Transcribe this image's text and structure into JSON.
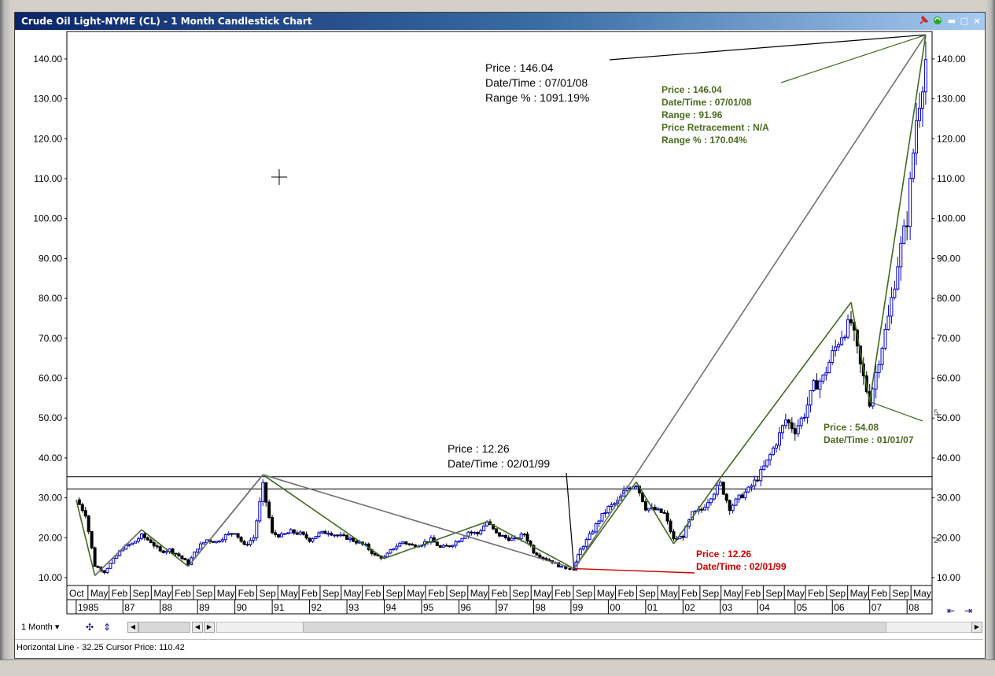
{
  "window": {
    "title": "Crude Oil Light-NYME (CL) - 1 Month Candlestick Chart",
    "icons": [
      "pin-icon",
      "refresh-icon"
    ],
    "controls": {
      "close": "×",
      "minimize": "▬",
      "maximize": "□"
    }
  },
  "toolbar": {
    "timeframe": "1 Month",
    "icons": [
      "crosshair-icon",
      "candle-settings-icon",
      "scroll-left-icon",
      "scroll-right-icon",
      "zoom-icon"
    ]
  },
  "status": {
    "text": "Horizontal Line - 32.25 Cursor Price: 110.42"
  },
  "chart_data": {
    "type": "candlestick",
    "title": "",
    "ylim": [
      10,
      147
    ],
    "y_ticks": [
      "10.00",
      "20.00",
      "30.00",
      "40.00",
      "50.00",
      "60.00",
      "70.00",
      "80.00",
      "90.00",
      "100.00",
      "110.00",
      "120.00",
      "130.00",
      "140.00"
    ],
    "x_month_labels": [
      "Oct",
      "May",
      "Feb",
      "Sep",
      "May",
      "Feb",
      "Sep",
      "May",
      "Feb",
      "Sep",
      "May",
      "Feb",
      "Sep",
      "May",
      "Feb",
      "Sep",
      "May",
      "Feb",
      "Sep",
      "May",
      "Feb",
      "Sep",
      "May",
      "Feb",
      "Sep",
      "May",
      "Feb",
      "Sep",
      "May",
      "Feb",
      "Sep",
      "May",
      "Feb",
      "Sep",
      "May",
      "Feb",
      "Sep",
      "May",
      "Feb",
      "Sep",
      "May"
    ],
    "x_year_labels": [
      "1985",
      "87",
      "88",
      "89",
      "90",
      "91",
      "92",
      "93",
      "94",
      "95",
      "96",
      "97",
      "98",
      "99",
      "00",
      "01",
      "02",
      "03",
      "04",
      "05",
      "06",
      "07",
      "08"
    ],
    "up_color": "#0000cc",
    "down_color": "#000000",
    "series_monthly_close": [
      {
        "t": 1985.75,
        "c": 29.5
      },
      {
        "t": 1986.0,
        "c": 26.0
      },
      {
        "t": 1986.25,
        "c": 13.0
      },
      {
        "t": 1986.5,
        "c": 11.5
      },
      {
        "t": 1986.75,
        "c": 14.5
      },
      {
        "t": 1987.0,
        "c": 17.5
      },
      {
        "t": 1987.25,
        "c": 18.5
      },
      {
        "t": 1987.5,
        "c": 20.5
      },
      {
        "t": 1987.75,
        "c": 19.0
      },
      {
        "t": 1988.0,
        "c": 16.5
      },
      {
        "t": 1988.25,
        "c": 17.0
      },
      {
        "t": 1988.5,
        "c": 15.5
      },
      {
        "t": 1988.75,
        "c": 13.5
      },
      {
        "t": 1989.0,
        "c": 17.5
      },
      {
        "t": 1989.25,
        "c": 19.5
      },
      {
        "t": 1989.5,
        "c": 19.0
      },
      {
        "t": 1989.75,
        "c": 20.5
      },
      {
        "t": 1990.0,
        "c": 21.5
      },
      {
        "t": 1990.25,
        "c": 18.0
      },
      {
        "t": 1990.5,
        "c": 20.0
      },
      {
        "t": 1990.75,
        "c": 33.0
      },
      {
        "t": 1991.0,
        "c": 21.0
      },
      {
        "t": 1991.25,
        "c": 20.5
      },
      {
        "t": 1991.5,
        "c": 21.5
      },
      {
        "t": 1991.75,
        "c": 21.0
      },
      {
        "t": 1992.0,
        "c": 19.5
      },
      {
        "t": 1992.25,
        "c": 21.0
      },
      {
        "t": 1992.5,
        "c": 21.5
      },
      {
        "t": 1992.75,
        "c": 20.5
      },
      {
        "t": 1993.0,
        "c": 20.0
      },
      {
        "t": 1993.25,
        "c": 19.0
      },
      {
        "t": 1993.5,
        "c": 18.0
      },
      {
        "t": 1993.75,
        "c": 15.5
      },
      {
        "t": 1994.0,
        "c": 15.0
      },
      {
        "t": 1994.25,
        "c": 17.5
      },
      {
        "t": 1994.5,
        "c": 19.0
      },
      {
        "t": 1994.75,
        "c": 18.0
      },
      {
        "t": 1995.0,
        "c": 18.5
      },
      {
        "t": 1995.25,
        "c": 19.5
      },
      {
        "t": 1995.5,
        "c": 17.5
      },
      {
        "t": 1995.75,
        "c": 18.0
      },
      {
        "t": 1996.0,
        "c": 19.5
      },
      {
        "t": 1996.25,
        "c": 21.5
      },
      {
        "t": 1996.5,
        "c": 21.0
      },
      {
        "t": 1996.75,
        "c": 24.0
      },
      {
        "t": 1997.0,
        "c": 21.0
      },
      {
        "t": 1997.25,
        "c": 20.0
      },
      {
        "t": 1997.5,
        "c": 19.5
      },
      {
        "t": 1997.75,
        "c": 21.0
      },
      {
        "t": 1998.0,
        "c": 16.5
      },
      {
        "t": 1998.25,
        "c": 15.0
      },
      {
        "t": 1998.5,
        "c": 14.0
      },
      {
        "t": 1998.75,
        "c": 12.5
      },
      {
        "t": 1999.08,
        "c": 12.26
      },
      {
        "t": 1999.25,
        "c": 17.0
      },
      {
        "t": 1999.5,
        "c": 20.5
      },
      {
        "t": 1999.75,
        "c": 24.5
      },
      {
        "t": 2000.0,
        "c": 27.5
      },
      {
        "t": 2000.25,
        "c": 29.0
      },
      {
        "t": 2000.5,
        "c": 32.5
      },
      {
        "t": 2000.75,
        "c": 33.5
      },
      {
        "t": 2001.0,
        "c": 27.5
      },
      {
        "t": 2001.25,
        "c": 27.0
      },
      {
        "t": 2001.5,
        "c": 26.0
      },
      {
        "t": 2001.75,
        "c": 19.5
      },
      {
        "t": 2002.0,
        "c": 20.5
      },
      {
        "t": 2002.25,
        "c": 26.0
      },
      {
        "t": 2002.5,
        "c": 27.0
      },
      {
        "t": 2002.75,
        "c": 30.5
      },
      {
        "t": 2003.0,
        "c": 33.5
      },
      {
        "t": 2003.25,
        "c": 27.5
      },
      {
        "t": 2003.5,
        "c": 30.0
      },
      {
        "t": 2003.75,
        "c": 32.0
      },
      {
        "t": 2004.0,
        "c": 35.0
      },
      {
        "t": 2004.25,
        "c": 39.0
      },
      {
        "t": 2004.5,
        "c": 44.0
      },
      {
        "t": 2004.75,
        "c": 49.5
      },
      {
        "t": 2005.0,
        "c": 47.0
      },
      {
        "t": 2005.25,
        "c": 51.0
      },
      {
        "t": 2005.5,
        "c": 58.0
      },
      {
        "t": 2005.75,
        "c": 60.0
      },
      {
        "t": 2006.0,
        "c": 66.0
      },
      {
        "t": 2006.25,
        "c": 71.0
      },
      {
        "t": 2006.5,
        "c": 74.0
      },
      {
        "t": 2006.75,
        "c": 63.0
      },
      {
        "t": 2007.0,
        "c": 54.08
      },
      {
        "t": 2007.25,
        "c": 65.0
      },
      {
        "t": 2007.5,
        "c": 75.0
      },
      {
        "t": 2007.75,
        "c": 89.0
      },
      {
        "t": 2008.0,
        "c": 100.0
      },
      {
        "t": 2008.25,
        "c": 125.0
      },
      {
        "t": 2008.5,
        "c": 140.0
      }
    ],
    "horizontal_lines": [
      35.3,
      32.25
    ],
    "swing_points": [
      {
        "t": 1985.75,
        "v": 29.5
      },
      {
        "t": 1986.25,
        "v": 10.5
      },
      {
        "t": 1987.5,
        "v": 22.0
      },
      {
        "t": 1988.75,
        "v": 12.8
      },
      {
        "t": 1990.75,
        "v": 35.8
      },
      {
        "t": 1994.0,
        "v": 14.8
      },
      {
        "t": 1996.75,
        "v": 24.0
      },
      {
        "t": 1999.08,
        "v": 12.26
      },
      {
        "t": 2000.75,
        "v": 34.0
      },
      {
        "t": 2001.75,
        "v": 18.5
      },
      {
        "t": 2003.0,
        "v": 35.0
      },
      {
        "t": 2006.5,
        "v": 79.0
      },
      {
        "t": 2007.0,
        "v": 54.08
      },
      {
        "t": 2008.5,
        "v": 146.04
      }
    ],
    "annotations": [
      {
        "id": "peak-black",
        "lines": [
          "Price : 146.04",
          "Date/Time : 07/01/08",
          "Range % : 1091.19%"
        ],
        "color": "#000000"
      },
      {
        "id": "peak-green",
        "lines": [
          "Price : 146.04",
          "Date/Time : 07/01/08",
          "Range : 91.96",
          "Price Retracement : N/A",
          "Range % : 170.04%"
        ],
        "color": "#4a6b1e"
      },
      {
        "id": "low-black",
        "lines": [
          "Price : 12.26",
          "Date/Time : 02/01/99"
        ],
        "color": "#000000"
      },
      {
        "id": "low-red",
        "lines": [
          "Price : 12.26",
          "Date/Time : 02/01/99"
        ],
        "color": "#cc0000"
      },
      {
        "id": "mid-green",
        "lines": [
          "Price : 54.08",
          "Date/Time : 01/01/07"
        ],
        "color": "#4a6b1e"
      }
    ],
    "right_axis_extra": [
      "5",
      "2"
    ]
  }
}
